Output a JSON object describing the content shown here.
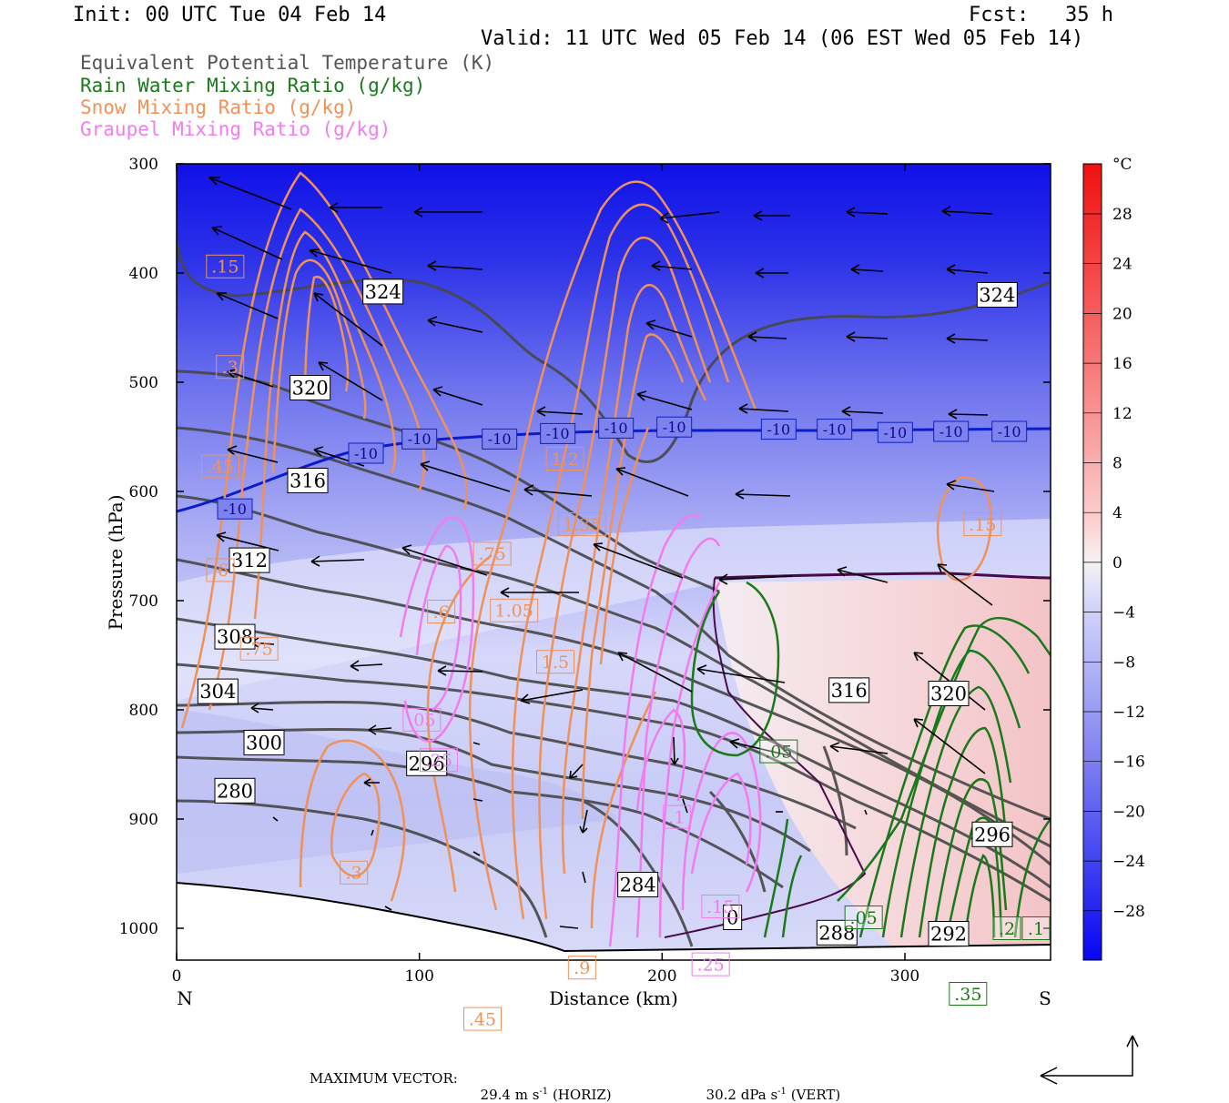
{
  "header": {
    "init": "Init: 00 UTC Tue 04 Feb 14",
    "fcst": "Fcst:   35 h",
    "valid": "Valid: 11 UTC Wed 05 Feb 14 (06 EST Wed 05 Feb 14)"
  },
  "legend": [
    {
      "label": "Equivalent Potential Temperature (K)",
      "color": "#555555"
    },
    {
      "label": "Rain Water Mixing Ratio (g/kg)",
      "color": "#1a7a1a"
    },
    {
      "label": "Snow Mixing Ratio (g/kg)",
      "color": "#f0915a"
    },
    {
      "label": "Graupel Mixing Ratio (g/kg)",
      "color": "#f07cf0"
    }
  ],
  "footer": {
    "max_vector": "MAXIMUM VECTOR:",
    "horiz": "29.4 m s",
    "horiz_unit": "(HORIZ)",
    "vert": "30.2 dPa s",
    "vert_unit": "(VERT)",
    "exp": "-1"
  },
  "colorbar": {
    "unit": "°C",
    "ticks": [
      "28",
      "24",
      "20",
      "16",
      "12",
      "8",
      "4",
      "0",
      "−4",
      "−8",
      "−12",
      "−16",
      "−20",
      "−24",
      "−28"
    ]
  },
  "chart_data": {
    "type": "cross-section",
    "xlabel": "Distance (km)",
    "ylabel": "Pressure (hPa)",
    "x_ticks": [
      0,
      100,
      200,
      300
    ],
    "y_ticks": [
      300,
      400,
      500,
      600,
      700,
      800,
      900,
      1000
    ],
    "xlim": [
      0,
      360
    ],
    "ylim": [
      300,
      1030
    ],
    "left_end": "N",
    "right_end": "S",
    "theta_e_labels": [
      {
        "text": "324",
        "x": 85,
        "p": 417
      },
      {
        "text": "324",
        "x": 338,
        "p": 420
      },
      {
        "text": "320",
        "x": 55,
        "p": 505
      },
      {
        "text": "320",
        "x": 318,
        "p": 785
      },
      {
        "text": "316",
        "x": 54,
        "p": 590
      },
      {
        "text": "316",
        "x": 277,
        "p": 782
      },
      {
        "text": "312",
        "x": 30,
        "p": 663
      },
      {
        "text": "308",
        "x": 24,
        "p": 733
      },
      {
        "text": "304",
        "x": 17,
        "p": 783
      },
      {
        "text": "300",
        "x": 36,
        "p": 830
      },
      {
        "text": "296",
        "x": 103,
        "p": 849
      },
      {
        "text": "296",
        "x": 336,
        "p": 914
      },
      {
        "text": "280",
        "x": 24,
        "p": 874
      },
      {
        "text": "284",
        "x": 190,
        "p": 960
      },
      {
        "text": "288",
        "x": 272,
        "p": 1004
      },
      {
        "text": "292",
        "x": 318,
        "p": 1005
      },
      {
        "text": "0",
        "x": 229,
        "p": 990
      }
    ],
    "isotherm_minus10_labels": [
      {
        "text": "-10",
        "x": 24,
        "p": 616
      },
      {
        "text": "-10",
        "x": 78,
        "p": 565
      },
      {
        "text": "-10",
        "x": 100,
        "p": 552
      },
      {
        "text": "-10",
        "x": 133,
        "p": 552
      },
      {
        "text": "-10",
        "x": 157,
        "p": 547
      },
      {
        "text": "-10",
        "x": 181,
        "p": 542
      },
      {
        "text": "-10",
        "x": 205,
        "p": 541
      },
      {
        "text": "-10",
        "x": 248,
        "p": 543
      },
      {
        "text": "-10",
        "x": 271,
        "p": 543
      },
      {
        "text": "-10",
        "x": 296,
        "p": 546
      },
      {
        "text": "-10",
        "x": 319,
        "p": 545
      },
      {
        "text": "-10",
        "x": 343,
        "p": 545
      }
    ],
    "snow_labels": [
      {
        "text": ".15",
        "x": 20,
        "p": 394
      },
      {
        "text": ".3",
        "x": 22,
        "p": 486
      },
      {
        "text": ".45",
        "x": 18,
        "p": 577
      },
      {
        "text": ".6",
        "x": 18,
        "p": 672
      },
      {
        "text": ".75",
        "x": 34,
        "p": 744
      },
      {
        "text": ".75",
        "x": 130,
        "p": 657
      },
      {
        "text": ".6",
        "x": 109,
        "p": 710
      },
      {
        "text": "1.05",
        "x": 139,
        "p": 709
      },
      {
        "text": "1.2",
        "x": 160,
        "p": 570
      },
      {
        "text": "1.35",
        "x": 167,
        "p": 630
      },
      {
        "text": "1.5",
        "x": 156,
        "p": 756
      },
      {
        "text": ".3",
        "x": 73,
        "p": 949
      },
      {
        "text": ".9",
        "x": 167,
        "p": 1036
      },
      {
        "text": ".45",
        "x": 126,
        "p": 1083
      },
      {
        "text": ".15",
        "x": 332,
        "p": 630
      }
    ],
    "graupel_labels": [
      {
        "text": ".05",
        "x": 101,
        "p": 809
      },
      {
        "text": ".25",
        "x": 108,
        "p": 846
      },
      {
        "text": ".15",
        "x": 224,
        "p": 980
      },
      {
        "text": ".25",
        "x": 220,
        "p": 1033
      },
      {
        "text": ".1",
        "x": 206,
        "p": 898
      }
    ],
    "rain_labels": [
      {
        "text": ".05",
        "x": 248,
        "p": 838
      },
      {
        "text": ".05",
        "x": 283,
        "p": 990
      },
      {
        "text": ".35",
        "x": 326,
        "p": 1060
      },
      {
        "text": ".1",
        "x": 354,
        "p": 1000
      },
      {
        "text": ".2",
        "x": 342,
        "p": 1000
      }
    ]
  }
}
